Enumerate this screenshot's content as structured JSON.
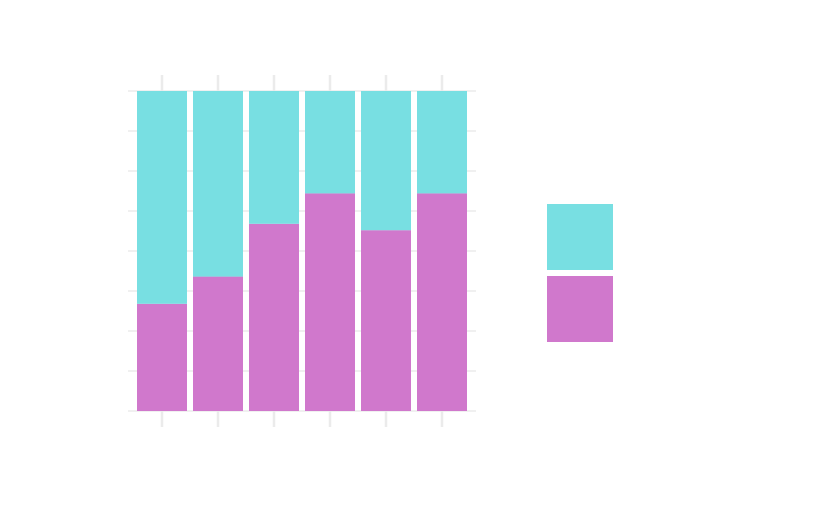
{
  "chart_data": {
    "type": "bar",
    "stacked": true,
    "percent_stacked": true,
    "title": "",
    "xlabel": "",
    "ylabel": "",
    "ylim": [
      0,
      1
    ],
    "categories_count": 6,
    "series": [
      {
        "color": "#d078cc",
        "values": [
          0.335,
          0.42,
          0.585,
          0.68,
          0.565,
          0.68
        ]
      },
      {
        "color": "#78dfe2",
        "values": [
          0.665,
          0.58,
          0.415,
          0.32,
          0.435,
          0.32
        ]
      }
    ],
    "grid": true,
    "legend": {
      "placement": "right",
      "entries": [
        {
          "color": "#78dfe2"
        },
        {
          "color": "#d078cc"
        }
      ]
    }
  }
}
